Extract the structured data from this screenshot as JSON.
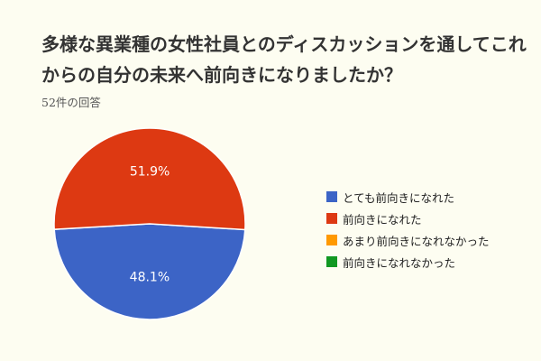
{
  "header": {
    "title": "多様な異業種の女性社員とのディスカッションを通してこれからの自分の未来へ前向きになりましたか？",
    "response_count": "52件の回答"
  },
  "chart_data": {
    "type": "pie",
    "categories": [
      "とても前向きになれた",
      "前向きになれた",
      "あまり前向きになれなかった",
      "前向きになれなかった"
    ],
    "values": [
      48.1,
      51.9,
      0,
      0
    ],
    "value_labels": [
      "48.1%",
      "51.9%",
      "",
      ""
    ],
    "colors": [
      "#3c64c6",
      "#dd3912",
      "#ff9900",
      "#119822"
    ],
    "start_angle_deg": 93.5,
    "legend_position": "right"
  }
}
